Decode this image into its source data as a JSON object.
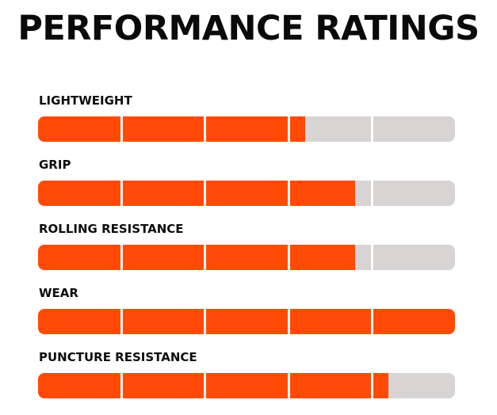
{
  "title": "PERFORMANCE RATINGS",
  "colors": {
    "fill": "#ff4a07",
    "track": "#d8d4d4",
    "divider": "#ffffff",
    "text": "#0d0d0d"
  },
  "chart_data": {
    "type": "bar",
    "orientation": "horizontal",
    "scale_max": 5,
    "segments": 5,
    "categories": [
      "LIGHTWEIGHT",
      "GRIP",
      "ROLLING RESISTANCE",
      "WEAR",
      "PUNCTURE RESISTANCE"
    ],
    "values": [
      3.2,
      3.8,
      3.8,
      5.0,
      4.2
    ]
  }
}
